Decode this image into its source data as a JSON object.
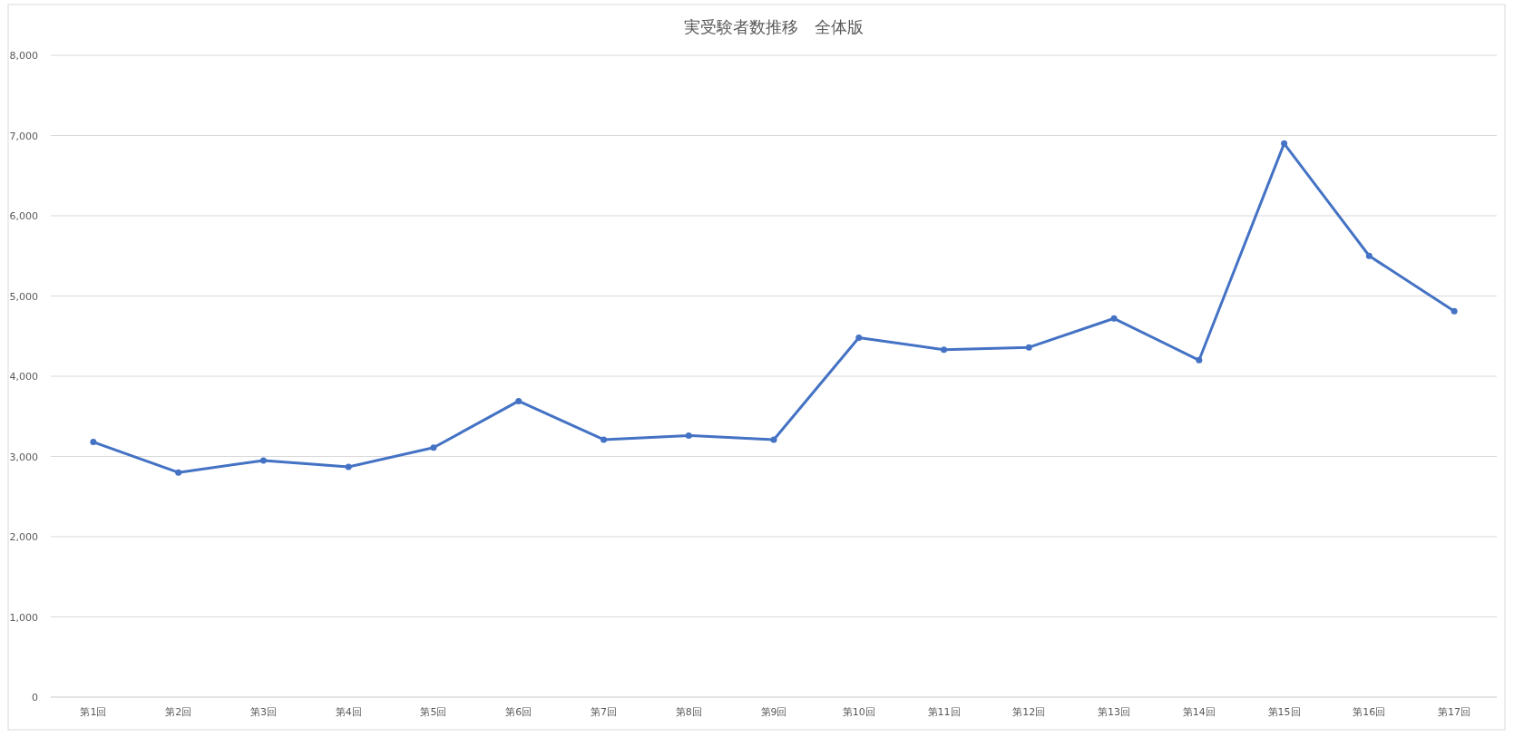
{
  "chart_data": {
    "type": "line",
    "title": "実受験者数推移　全体版",
    "categories": [
      "第1回",
      "第2回",
      "第3回",
      "第4回",
      "第5回",
      "第6回",
      "第7回",
      "第8回",
      "第9回",
      "第10回",
      "第11回",
      "第12回",
      "第13回",
      "第14回",
      "第15回",
      "第16回",
      "第17回"
    ],
    "series": [
      {
        "color": "#4472c4",
        "values": [
          3180,
          2800,
          2950,
          2870,
          3110,
          3690,
          3210,
          3260,
          3210,
          4480,
          4330,
          4360,
          4720,
          4200,
          6900,
          5500,
          4810
        ]
      }
    ],
    "ylim": [
      0,
      8000
    ],
    "yticks": [
      {
        "value": 0,
        "label": "0"
      },
      {
        "value": 1000,
        "label": "1,000"
      },
      {
        "value": 2000,
        "label": "2,000"
      },
      {
        "value": 3000,
        "label": "3,000"
      },
      {
        "value": 4000,
        "label": "4,000"
      },
      {
        "value": 5000,
        "label": "5,000"
      },
      {
        "value": 6000,
        "label": "6,000"
      },
      {
        "value": 7000,
        "label": "7,000"
      },
      {
        "value": 8000,
        "label": "8,000"
      }
    ],
    "grid": "y",
    "marker": "circle",
    "line_style": "solid"
  }
}
